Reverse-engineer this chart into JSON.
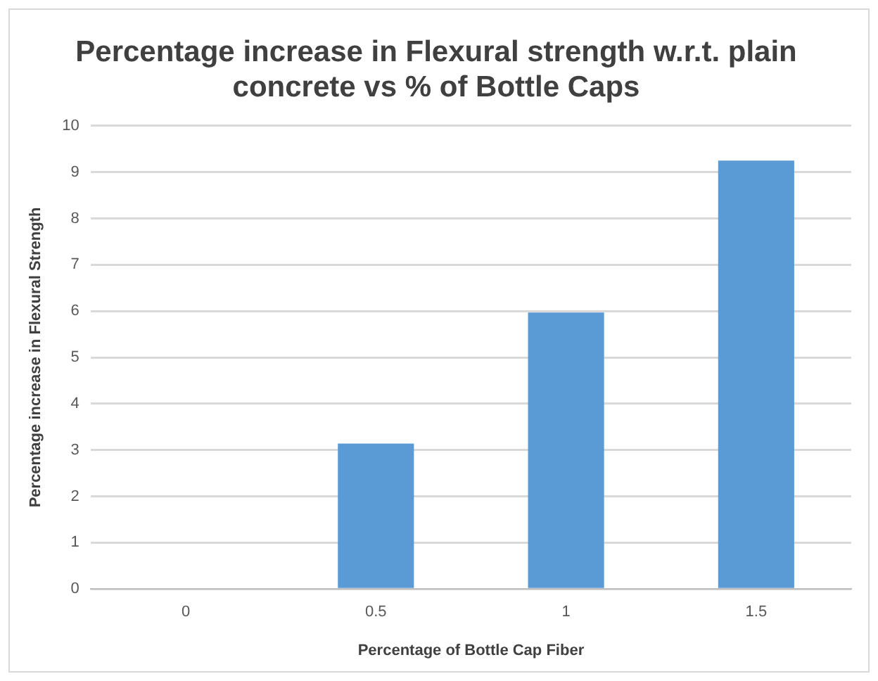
{
  "chart_data": {
    "type": "bar",
    "title": "Percentage increase in Flexural strength w.r.t. plain concrete vs % of Bottle Caps",
    "xlabel": "Percentage of Bottle Cap Fiber",
    "ylabel": "Percentage increase in Flexural Strength",
    "categories": [
      "0",
      "0.5",
      "1",
      "1.5"
    ],
    "values": [
      0,
      3.14,
      5.97,
      9.25
    ],
    "color": "#5b9bd5",
    "ylim": [
      0,
      10
    ],
    "yticks": [
      0,
      1,
      2,
      3,
      4,
      5,
      6,
      7,
      8,
      9,
      10
    ],
    "grid": "y",
    "legend": false
  }
}
